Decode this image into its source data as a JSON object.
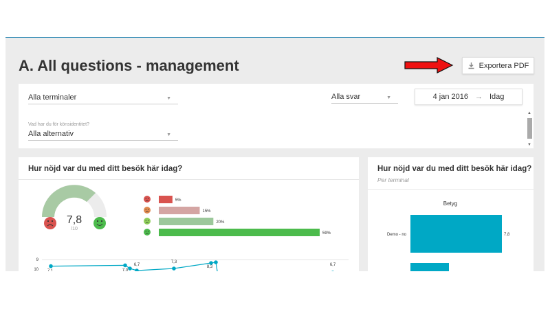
{
  "page": {
    "title": "A. All questions - management"
  },
  "export": {
    "label": "Exportera PDF",
    "icon": "download-icon"
  },
  "filters": {
    "terminals": {
      "value": "Alla terminaler"
    },
    "answers": {
      "value": "Alla svar"
    },
    "date_from": "4 jan 2016",
    "date_to": "Idag",
    "gender": {
      "label": "Vad har du för könsidentitet?",
      "value": "Alla alternativ"
    }
  },
  "left_card": {
    "title": "Hur nöjd var du med ditt besök här idag?",
    "score": "7,8",
    "score_max": "/10",
    "bars": [
      {
        "face": "very-unhappy",
        "label": "5%",
        "value": 5,
        "color": "#d9534f"
      },
      {
        "face": "unhappy",
        "label": "15%",
        "value": 15,
        "color": "#d4a5a3"
      },
      {
        "face": "happy",
        "label": "20%",
        "value": 20,
        "color": "#9cc89b"
      },
      {
        "face": "very-happy",
        "label": "59%",
        "value": 59,
        "color": "#4cbb4c"
      }
    ]
  },
  "right_card": {
    "title": "Hur nöjd var du med ditt besök här idag?",
    "subtitle": "Per terminal"
  },
  "chart_data": [
    {
      "type": "bar",
      "title": "Betyg",
      "categories": [
        "Demo - no"
      ],
      "values": [
        7.8
      ],
      "value_labels": [
        "7,8"
      ],
      "color": "#00a8c5"
    },
    {
      "type": "line",
      "y_ticks": [
        "9",
        "10"
      ],
      "points": [
        {
          "x": 0,
          "y": 7.1,
          "label": "7,1"
        },
        {
          "x": 1,
          "y": 7.0,
          "label": "7,0"
        },
        {
          "x": 2,
          "y": 6.7,
          "label": "6,7"
        },
        {
          "x": 3,
          "y": 7.3,
          "label": "7,3"
        },
        {
          "x": 4,
          "y": 8.3,
          "label": "8,3"
        },
        {
          "x": 5,
          "y": 6.7,
          "label": "6,7"
        }
      ],
      "color": "#00a8c5"
    }
  ]
}
